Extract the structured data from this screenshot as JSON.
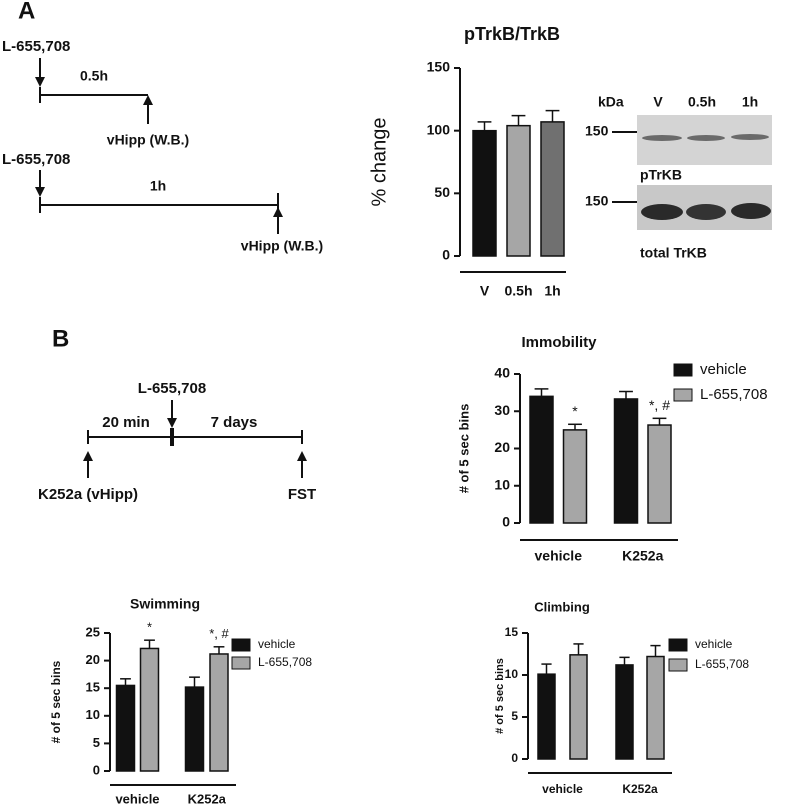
{
  "panel_labels": [
    "A",
    "B"
  ],
  "timeline_a": {
    "rows": [
      {
        "drug": "L-655,708",
        "time": "0.5h",
        "endpoint": "vHipp (W.B.)"
      },
      {
        "drug": "L-655,708",
        "time": "1h",
        "endpoint": "vHipp (W.B.)"
      }
    ]
  },
  "timeline_b": {
    "drug": "L-655,708",
    "pre": "20 min",
    "post": "7 days",
    "start": "K252a (vHipp)",
    "end": "FST"
  },
  "blot": {
    "kda": "kDa",
    "lanes": [
      "V",
      "0.5h",
      "1h"
    ],
    "marker": "150",
    "top_label": "pTrKB",
    "bottom_label": "total TrKB"
  },
  "chart_data": [
    {
      "type": "bar",
      "title": "pTrkB/TrkB",
      "y_label": "% change",
      "categories": [
        "V",
        "0.5h",
        "1h"
      ],
      "values": [
        100,
        104,
        107
      ],
      "errors": [
        7,
        8,
        9
      ],
      "colors": [
        "#111111",
        "#a6a6a6",
        "#707070"
      ],
      "ylim": [
        0,
        150
      ],
      "yticks": [
        0,
        50,
        100,
        150
      ]
    },
    {
      "type": "bar",
      "title": "Immobility",
      "y_label": "# of 5 sec bins",
      "categories": [
        "vehicle",
        "K252a"
      ],
      "series": [
        {
          "name": "vehicle",
          "color": "#111111",
          "values": [
            34,
            33.3
          ],
          "errors": [
            2,
            2
          ]
        },
        {
          "name": "L-655,708",
          "color": "#a6a6a6",
          "values": [
            25,
            26.3
          ],
          "errors": [
            1.5,
            1.8
          ],
          "markers": [
            "*",
            "*, #"
          ]
        }
      ],
      "ylim": [
        0,
        40
      ],
      "yticks": [
        0,
        10,
        20,
        30,
        40
      ]
    },
    {
      "type": "bar",
      "title": "Swimming",
      "y_label": "# of 5 sec bins",
      "categories": [
        "vehicle",
        "K252a"
      ],
      "series": [
        {
          "name": "vehicle",
          "color": "#111111",
          "values": [
            15.5,
            15.2
          ],
          "errors": [
            1.2,
            1.8
          ]
        },
        {
          "name": "L-655,708",
          "color": "#a6a6a6",
          "values": [
            22.2,
            21.2
          ],
          "errors": [
            1.5,
            1.3
          ],
          "markers": [
            "*",
            "*, #"
          ]
        }
      ],
      "ylim": [
        0,
        25
      ],
      "yticks": [
        0,
        5,
        10,
        15,
        20,
        25
      ]
    },
    {
      "type": "bar",
      "title": "Climbing",
      "y_label": "# of 5 sec bins",
      "categories": [
        "vehicle",
        "K252a"
      ],
      "series": [
        {
          "name": "vehicle",
          "color": "#111111",
          "values": [
            10.1,
            11.2
          ],
          "errors": [
            1.2,
            0.9
          ]
        },
        {
          "name": "L-655,708",
          "color": "#a6a6a6",
          "values": [
            12.4,
            12.2
          ],
          "errors": [
            1.3,
            1.3
          ]
        }
      ],
      "ylim": [
        0,
        15
      ],
      "yticks": [
        0,
        5,
        10,
        15
      ]
    }
  ]
}
